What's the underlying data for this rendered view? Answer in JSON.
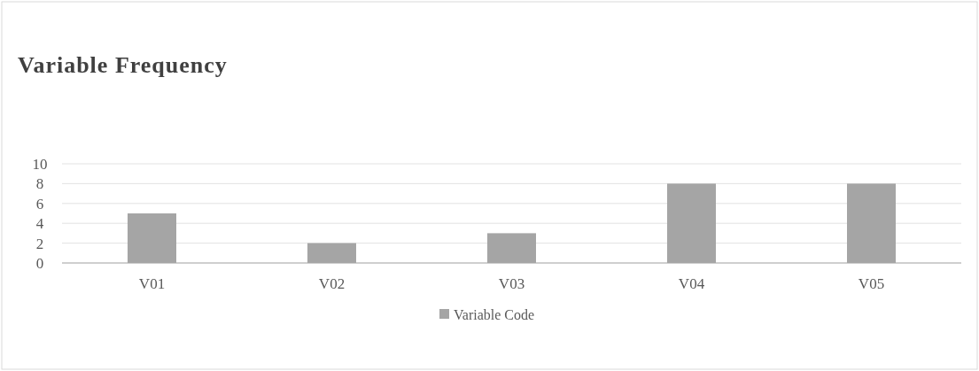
{
  "chart_data": {
    "type": "bar",
    "title": "Variable Frequency",
    "categories": [
      "V01",
      "V02",
      "V03",
      "V04",
      "V05"
    ],
    "series": [
      {
        "name": "Variable Code",
        "color": "#a5a5a5",
        "values": [
          5,
          2,
          3,
          8,
          8
        ]
      }
    ],
    "ylim": [
      0,
      10
    ],
    "yticks": [
      0,
      2,
      4,
      6,
      8,
      10
    ],
    "grid": "y",
    "legend": "bottom"
  }
}
